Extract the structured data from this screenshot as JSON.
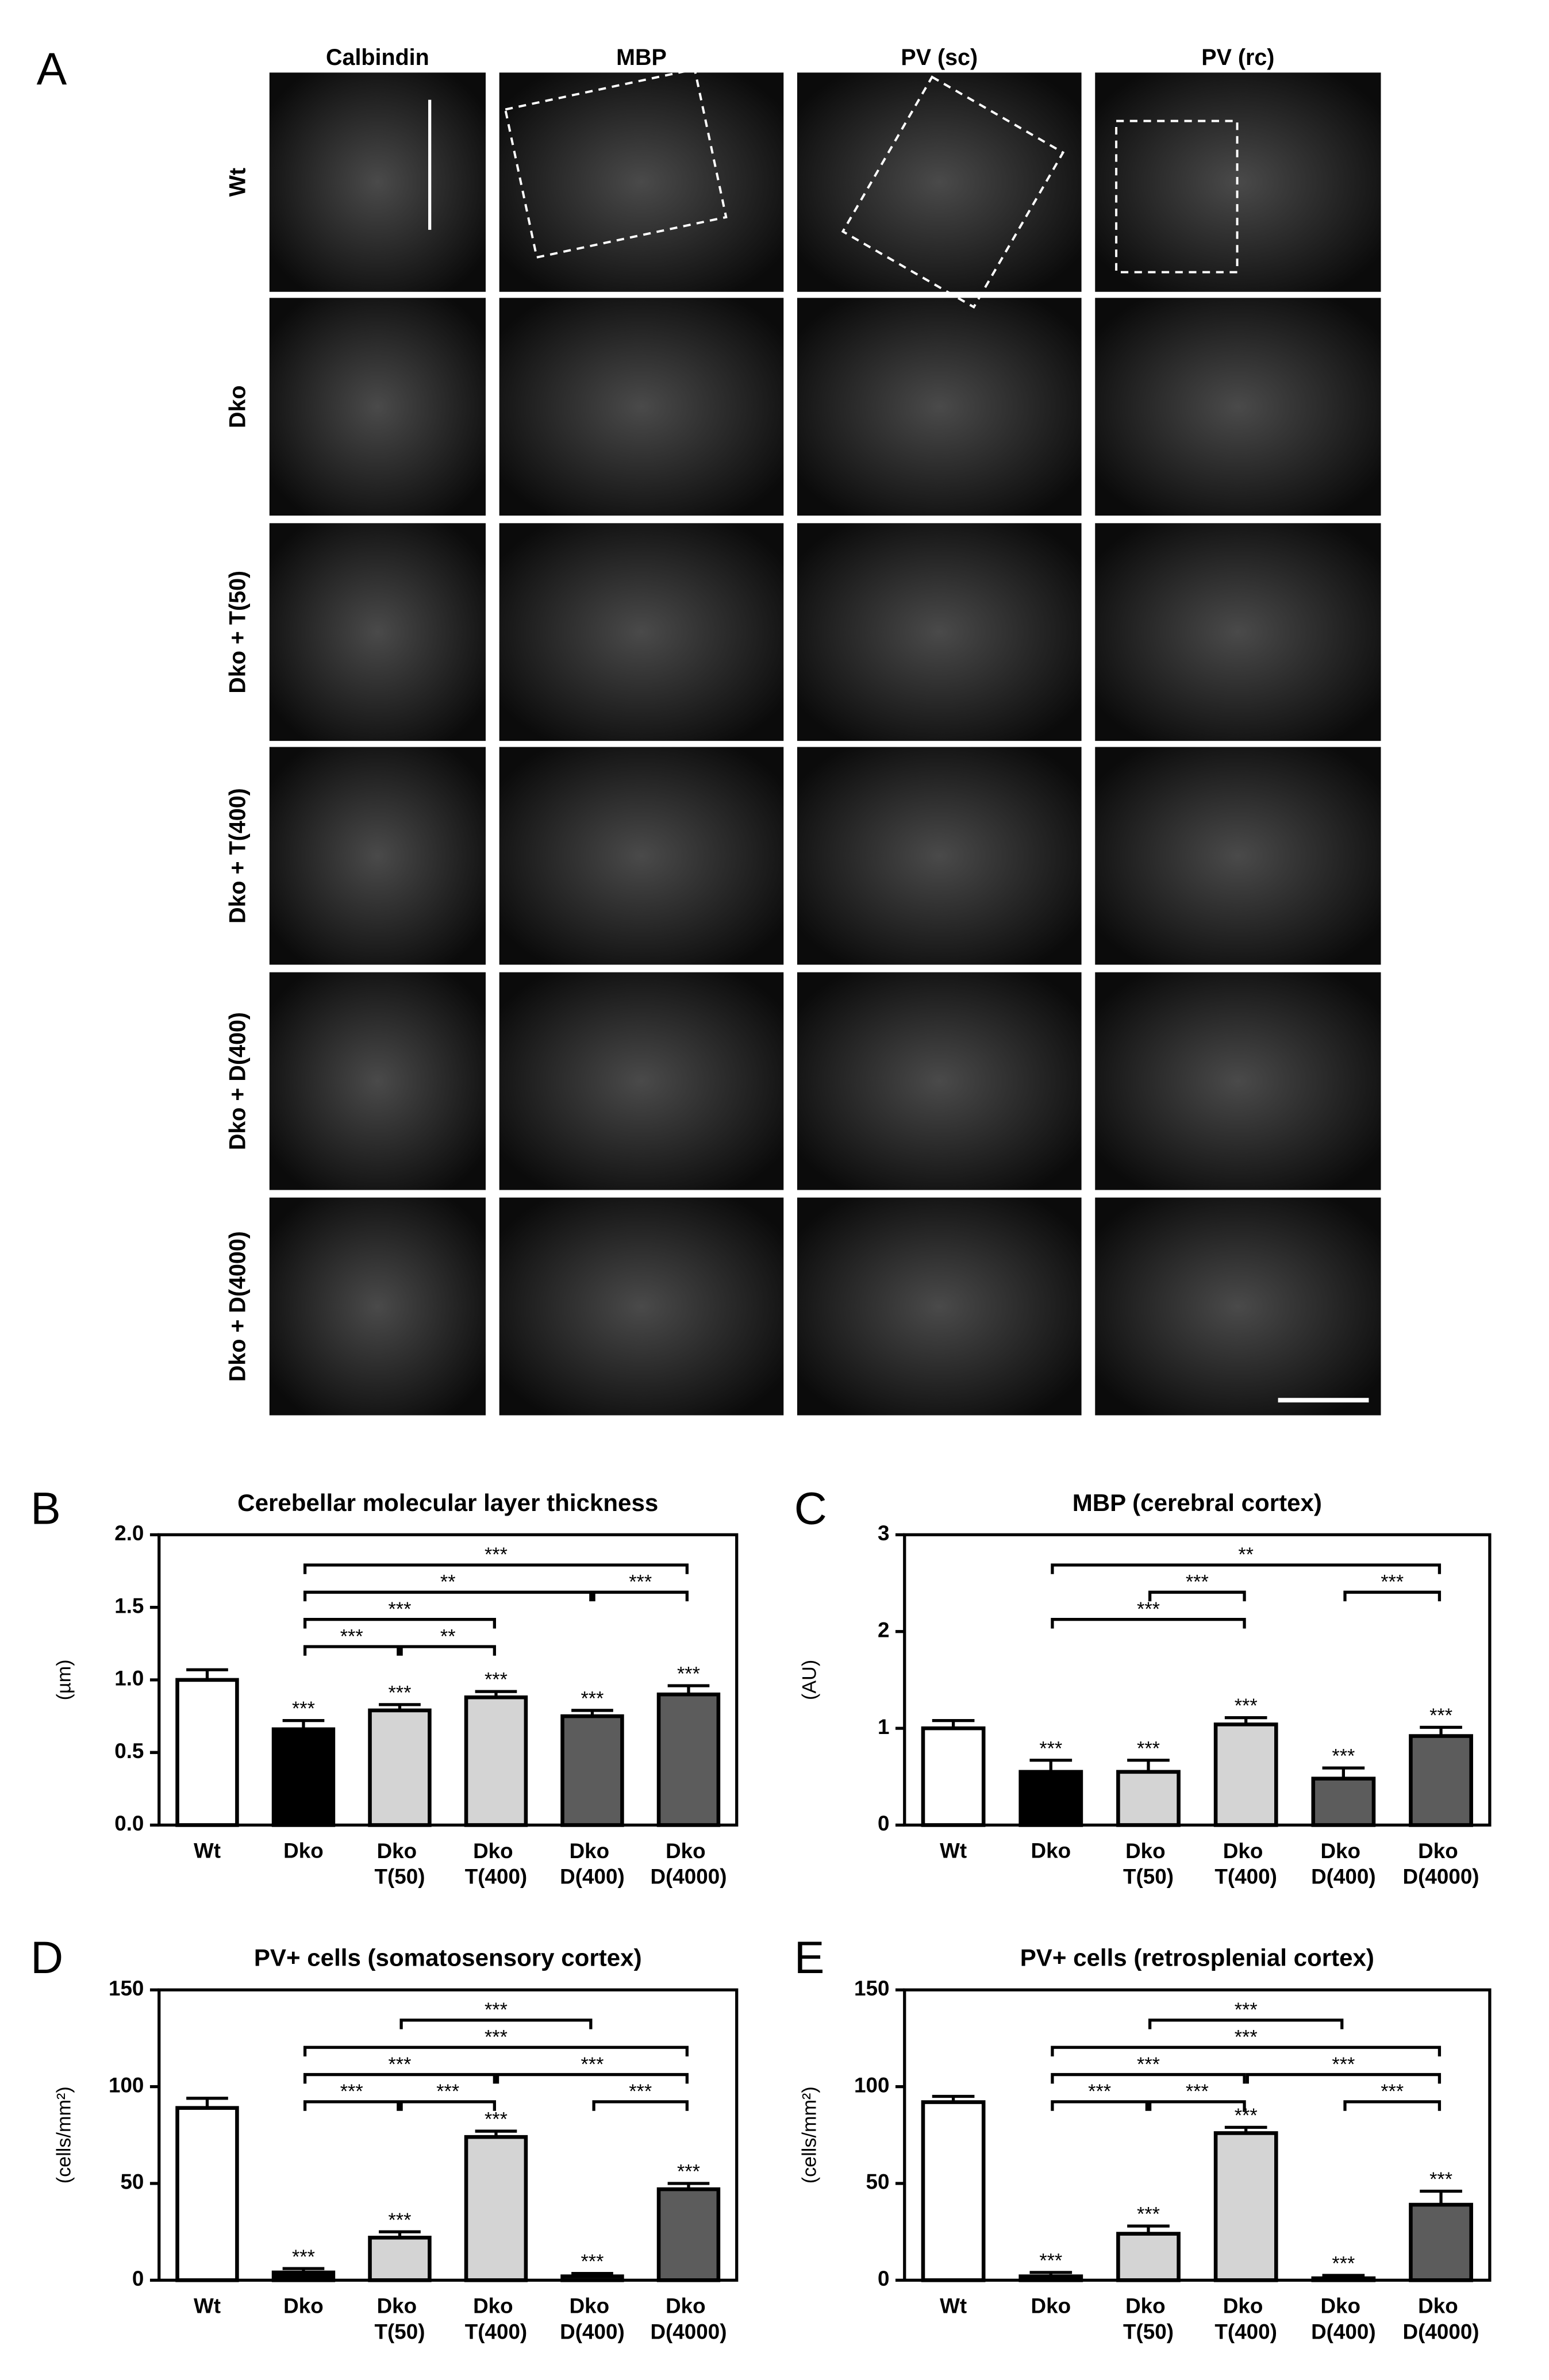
{
  "panel_a": {
    "letter": "A",
    "columns": [
      "Calbindin",
      "MBP",
      "PV (sc)",
      "PV (rc)"
    ],
    "rows": [
      "Wt",
      "Dko",
      "Dko + T(50)",
      "Dko + T(400)",
      "Dko + D(400)",
      "Dko + D(4000)"
    ]
  },
  "chart_data": [
    {
      "type": "bar",
      "panel": "B",
      "title": "Cerebellar molecular layer thickness",
      "y_label": "(µm)",
      "categories": [
        "Wt",
        "Dko",
        "Dko T(50)",
        "Dko T(400)",
        "Dko D(400)",
        "Dko D(4000)"
      ],
      "values": [
        1.0,
        0.66,
        0.79,
        0.88,
        0.75,
        0.9
      ],
      "errors": [
        0.07,
        0.06,
        0.04,
        0.04,
        0.04,
        0.06
      ],
      "colors": [
        "#ffffff",
        "#000000",
        "#d4d4d4",
        "#d4d4d4",
        "#5c5c5c",
        "#5c5c5c"
      ],
      "significance": [
        null,
        "***",
        "***",
        "***",
        "***",
        "***"
      ],
      "ylim": [
        0,
        2
      ],
      "yticks": [
        {
          "value": 0,
          "label": "0.0"
        },
        0.5,
        {
          "value": 1,
          "label": "1.0"
        },
        1.5,
        {
          "value": 2,
          "label": "2.0"
        }
      ],
      "brackets": [
        [
          {
            "from": "Dko",
            "to": "Dko D(4000)",
            "label": "***"
          }
        ],
        [
          {
            "from": "Dko",
            "to": "Dko D(400)",
            "label": "**"
          },
          {
            "from": "Dko D(400)",
            "to": "Dko D(4000)",
            "label": "***"
          }
        ],
        [
          {
            "from": "Dko",
            "to": "Dko T(400)",
            "label": "***"
          }
        ],
        [
          {
            "from": "Dko",
            "to": "Dko T(50)",
            "label": "***"
          },
          {
            "from": "Dko T(50)",
            "to": "Dko T(400)",
            "label": "**"
          }
        ]
      ]
    },
    {
      "type": "bar",
      "panel": "C",
      "title": "MBP (cerebral cortex)",
      "y_label": "(AU)",
      "categories": [
        "Wt",
        "Dko",
        "Dko T(50)",
        "Dko T(400)",
        "Dko D(400)",
        "Dko D(4000)"
      ],
      "values": [
        1.0,
        0.55,
        0.55,
        1.04,
        0.48,
        0.92
      ],
      "errors": [
        0.08,
        0.12,
        0.12,
        0.07,
        0.11,
        0.09
      ],
      "colors": [
        "#ffffff",
        "#000000",
        "#d4d4d4",
        "#d4d4d4",
        "#5c5c5c",
        "#5c5c5c"
      ],
      "significance": [
        null,
        "***",
        "***",
        "***",
        "***",
        "***"
      ],
      "ylim": [
        0,
        3
      ],
      "yticks": [
        0,
        1,
        2,
        3
      ],
      "brackets": [
        [
          {
            "from": "Dko",
            "to": "Dko D(4000)",
            "label": "**"
          }
        ],
        [
          {
            "from": "Dko T(50)",
            "to": "Dko T(400)",
            "label": "***"
          },
          {
            "from": "Dko D(400)",
            "to": "Dko D(4000)",
            "label": "***"
          }
        ],
        [
          {
            "from": "Dko",
            "to": "Dko T(400)",
            "label": "***"
          }
        ]
      ]
    },
    {
      "type": "bar",
      "panel": "D",
      "title": "PV+ cells (somatosensory cortex)",
      "y_label": "(cells/mm²)",
      "categories": [
        "Wt",
        "Dko",
        "Dko T(50)",
        "Dko T(400)",
        "Dko D(400)",
        "Dko D(4000)"
      ],
      "values": [
        89,
        4,
        22,
        74,
        2,
        47
      ],
      "errors": [
        5,
        2,
        3,
        3,
        1.5,
        3
      ],
      "colors": [
        "#ffffff",
        "#000000",
        "#d4d4d4",
        "#d4d4d4",
        "#5c5c5c",
        "#5c5c5c"
      ],
      "significance": [
        null,
        "***",
        "***",
        "***",
        "***",
        "***"
      ],
      "ylim": [
        0,
        150
      ],
      "yticks": [
        0,
        50,
        100,
        150
      ],
      "brackets": [
        [
          {
            "from": "Dko T(50)",
            "to": "Dko D(400)",
            "label": "***"
          }
        ],
        [
          {
            "from": "Dko",
            "to": "Dko D(4000)",
            "label": "***"
          }
        ],
        [
          {
            "from": "Dko",
            "to": "Dko T(400)",
            "label": "***"
          },
          {
            "from": "Dko T(400)",
            "to": "Dko D(4000)",
            "label": "***"
          }
        ],
        [
          {
            "from": "Dko",
            "to": "Dko T(50)",
            "label": "***"
          },
          {
            "from": "Dko T(50)",
            "to": "Dko T(400)",
            "label": "***"
          },
          {
            "from": "Dko D(400)",
            "to": "Dko D(4000)",
            "label": "***"
          }
        ]
      ]
    },
    {
      "type": "bar",
      "panel": "E",
      "title": "PV+ cells (retrosplenial cortex)",
      "y_label": "(cells/mm²)",
      "categories": [
        "Wt",
        "Dko",
        "Dko T(50)",
        "Dko T(400)",
        "Dko D(400)",
        "Dko D(4000)"
      ],
      "values": [
        92,
        2,
        24,
        76,
        1,
        39
      ],
      "errors": [
        3,
        2,
        4,
        3,
        1.5,
        7
      ],
      "colors": [
        "#ffffff",
        "#000000",
        "#d4d4d4",
        "#d4d4d4",
        "#5c5c5c",
        "#5c5c5c"
      ],
      "significance": [
        null,
        "***",
        "***",
        "***",
        "***",
        "***"
      ],
      "ylim": [
        0,
        150
      ],
      "yticks": [
        0,
        50,
        100,
        150
      ],
      "brackets": [
        [
          {
            "from": "Dko T(50)",
            "to": "Dko D(400)",
            "label": "***"
          }
        ],
        [
          {
            "from": "Dko",
            "to": "Dko D(4000)",
            "label": "***"
          }
        ],
        [
          {
            "from": "Dko",
            "to": "Dko T(400)",
            "label": "***"
          },
          {
            "from": "Dko T(400)",
            "to": "Dko D(4000)",
            "label": "***"
          }
        ],
        [
          {
            "from": "Dko",
            "to": "Dko T(50)",
            "label": "***"
          },
          {
            "from": "Dko T(50)",
            "to": "Dko T(400)",
            "label": "***"
          },
          {
            "from": "Dko D(400)",
            "to": "Dko D(4000)",
            "label": "***"
          }
        ]
      ]
    }
  ]
}
